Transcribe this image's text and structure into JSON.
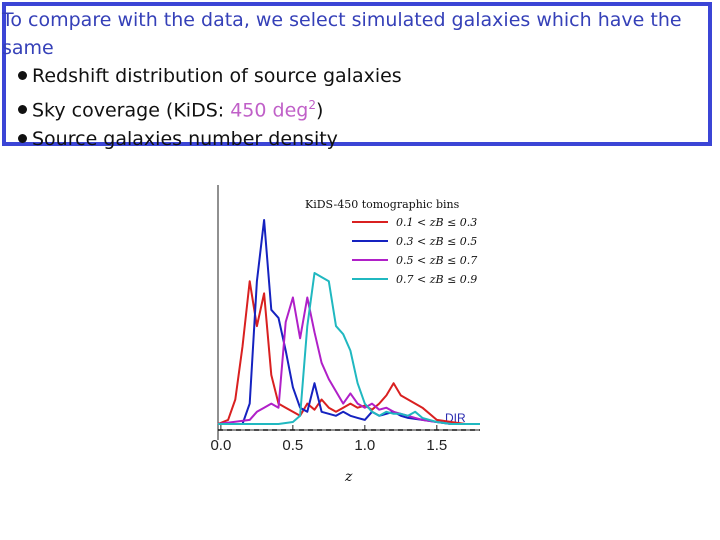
{
  "slide": {
    "intro": "To compare with the data, we select simulated galaxies which have the same",
    "bullets": [
      {
        "text": "Redshift distribution of source galaxies"
      },
      {
        "prefix": "Sky coverage (KiDS: ",
        "accent": "450 deg",
        "sup": "2",
        "suffix": ")"
      },
      {
        "text": "Source galaxies number density"
      }
    ]
  },
  "chart_data": {
    "type": "line",
    "title": "KiDS-450 tomographic bins",
    "xlabel": "z",
    "xlim": [
      -0.02,
      1.8
    ],
    "xticks": [
      "0.0",
      "0.5",
      "1.0",
      "1.5"
    ],
    "annotation": "DIR",
    "series": [
      {
        "name": "0.1 < zB ≤ 0.3",
        "color": "#d92020",
        "x": [
          -0.02,
          0.05,
          0.1,
          0.15,
          0.2,
          0.25,
          0.3,
          0.35,
          0.4,
          0.45,
          0.5,
          0.55,
          0.6,
          0.65,
          0.7,
          0.75,
          0.8,
          0.85,
          0.9,
          0.95,
          1.0,
          1.05,
          1.1,
          1.15,
          1.2,
          1.25,
          1.3,
          1.35,
          1.4,
          1.5,
          1.6,
          1.7,
          1.8
        ],
        "y": [
          0.0,
          0.02,
          0.12,
          0.38,
          0.7,
          0.48,
          0.64,
          0.24,
          0.1,
          0.08,
          0.06,
          0.04,
          0.1,
          0.07,
          0.12,
          0.08,
          0.06,
          0.08,
          0.1,
          0.08,
          0.09,
          0.07,
          0.1,
          0.14,
          0.2,
          0.14,
          0.12,
          0.1,
          0.08,
          0.02,
          0.01,
          0.0,
          0.0
        ]
      },
      {
        "name": "0.3 < zB ≤ 0.5",
        "color": "#1522c0",
        "x": [
          -0.02,
          0.15,
          0.2,
          0.25,
          0.3,
          0.35,
          0.4,
          0.45,
          0.5,
          0.55,
          0.6,
          0.65,
          0.7,
          0.75,
          0.8,
          0.85,
          0.9,
          0.95,
          1.0,
          1.05,
          1.1,
          1.15,
          1.2,
          1.25,
          1.3,
          1.4,
          1.5,
          1.6,
          1.8
        ],
        "y": [
          0.0,
          0.0,
          0.1,
          0.7,
          1.0,
          0.56,
          0.52,
          0.36,
          0.18,
          0.08,
          0.06,
          0.2,
          0.06,
          0.05,
          0.04,
          0.06,
          0.04,
          0.03,
          0.02,
          0.06,
          0.04,
          0.05,
          0.06,
          0.04,
          0.03,
          0.02,
          0.01,
          0.0,
          0.0
        ]
      },
      {
        "name": "0.5 < zB ≤ 0.7",
        "color": "#b020c8",
        "x": [
          -0.02,
          0.2,
          0.25,
          0.3,
          0.35,
          0.4,
          0.45,
          0.5,
          0.55,
          0.6,
          0.65,
          0.7,
          0.75,
          0.8,
          0.85,
          0.9,
          0.95,
          1.0,
          1.05,
          1.1,
          1.15,
          1.2,
          1.25,
          1.3,
          1.35,
          1.4,
          1.5,
          1.6,
          1.8
        ],
        "y": [
          0.0,
          0.02,
          0.06,
          0.08,
          0.1,
          0.08,
          0.5,
          0.62,
          0.42,
          0.62,
          0.45,
          0.3,
          0.22,
          0.16,
          0.1,
          0.15,
          0.1,
          0.08,
          0.1,
          0.07,
          0.08,
          0.06,
          0.05,
          0.04,
          0.03,
          0.02,
          0.01,
          0.0,
          0.0
        ]
      },
      {
        "name": "0.7 < zB ≤ 0.9",
        "color": "#20b8c0",
        "x": [
          -0.02,
          0.4,
          0.5,
          0.55,
          0.6,
          0.65,
          0.7,
          0.75,
          0.8,
          0.85,
          0.9,
          0.95,
          1.0,
          1.05,
          1.1,
          1.15,
          1.2,
          1.25,
          1.3,
          1.35,
          1.4,
          1.5,
          1.6,
          1.8
        ],
        "y": [
          0.0,
          0.0,
          0.01,
          0.04,
          0.48,
          0.74,
          0.72,
          0.7,
          0.48,
          0.44,
          0.36,
          0.2,
          0.1,
          0.06,
          0.04,
          0.06,
          0.05,
          0.05,
          0.04,
          0.06,
          0.03,
          0.01,
          0.0,
          0.0
        ]
      }
    ],
    "reference_line": {
      "style": "dashed",
      "color": "#111111",
      "y": 0.0
    }
  }
}
